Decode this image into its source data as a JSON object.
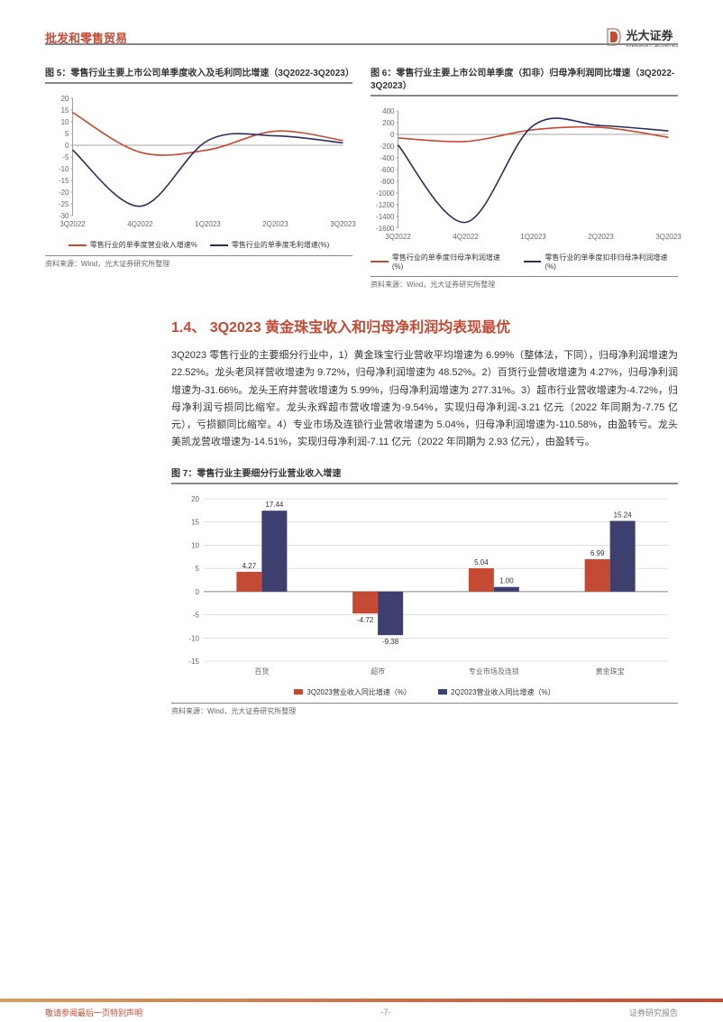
{
  "header": {
    "title": "批发和零售贸易",
    "logo_name": "光大证券",
    "logo_sub": "EVERBRIGHT SECURITIES"
  },
  "colors": {
    "accent": "#c44a34",
    "series_red": "#c44a34",
    "series_navy": "#2a2d5e",
    "grid": "#cccccc",
    "axis": "#888888",
    "bar_red": "#c44a34",
    "bar_navy": "#3d3f6e"
  },
  "chart5": {
    "title": "图 5：零售行业主要上市公司单季度收入及毛利同比增速（3Q2022-3Q2023）",
    "type": "line",
    "x_labels": [
      "3Q2022",
      "4Q2022",
      "1Q2023",
      "2Q2023",
      "3Q2023"
    ],
    "series": [
      {
        "name": "零售行业的单季度营业收入增速%",
        "color": "#c44a34",
        "values": [
          14,
          -3,
          -2,
          6,
          2
        ]
      },
      {
        "name": "零售行业的单季度毛利增速(%)",
        "color": "#2a2d5e",
        "values": [
          -2,
          -26,
          2,
          4,
          1
        ]
      }
    ],
    "ylim": [
      -30,
      20
    ],
    "ytick_step": 5,
    "source": "资料来源：Wind，光大证券研究所整理"
  },
  "chart6": {
    "title": "图 6：零售行业主要上市公司单季度（扣非）归母净利润同比增速（3Q2022-3Q2023）",
    "type": "line",
    "x_labels": [
      "3Q2022",
      "4Q2022",
      "1Q2023",
      "2Q2023",
      "3Q2023"
    ],
    "series": [
      {
        "name": "零售行业的单季度归母净利润增速(%)",
        "color": "#c44a34",
        "values": [
          -60,
          -120,
          80,
          120,
          -50
        ]
      },
      {
        "name": "零售行业的单季度扣非归母净利润增速(%)",
        "color": "#2a2d5e",
        "values": [
          -180,
          -1500,
          150,
          150,
          60
        ]
      }
    ],
    "ylim": [
      -1600,
      400
    ],
    "ytick_step": 200,
    "source": "资料来源：Wind，光大证券研究所整理"
  },
  "section": {
    "title": "1.4、 3Q2023 黄金珠宝收入和归母净利润均表现最优",
    "body": "3Q2023 零售行业的主要细分行业中，1）黄金珠宝行业营收平均增速为 6.99%（整体法，下同），归母净利润增速为 22.52%。龙头老凤祥营收增速为 9.72%，归母净利润增速为 48.52%。2）百货行业营收增速为 4.27%，归母净利润增速为-31.66%。龙头王府井营收增速为 5.99%，归母净利润增速为 277.31%。3）超市行业营收增速为-4.72%，归母净利润亏损同比缩窄。龙头永辉超市营收增速为-9.54%，实现归母净利润-3.21 亿元（2022 年同期为-7.75 亿元），亏损额同比缩窄。4）专业市场及连锁行业营收增速为 5.04%，归母净利润增速为-110.58%，由盈转亏。龙头美凯龙营收增速为-14.51%，实现归母净利润-7.11 亿元（2022 年同期为 2.93 亿元），由盈转亏。"
  },
  "chart7": {
    "title": "图 7：零售行业主要细分行业营业收入增速",
    "type": "bar",
    "categories": [
      "百货",
      "超市",
      "专业市场及连锁",
      "黄金珠宝"
    ],
    "series": [
      {
        "name": "3Q2023营业收入同比增速（%）",
        "color": "#c44a34",
        "values": [
          4.27,
          -4.72,
          5.04,
          6.99
        ]
      },
      {
        "name": "2Q2023营业收入同比增速（%）",
        "color": "#3d3f6e",
        "values": [
          17.44,
          -9.38,
          1.0,
          15.24
        ]
      }
    ],
    "ylim": [
      -15,
      20
    ],
    "ytick_step": 5,
    "source": "资料来源：Wind，光大证券研究所整理"
  },
  "footer": {
    "left": "敬请参阅最后一页特别声明",
    "center": "-7-",
    "right": "证券研究报告"
  }
}
